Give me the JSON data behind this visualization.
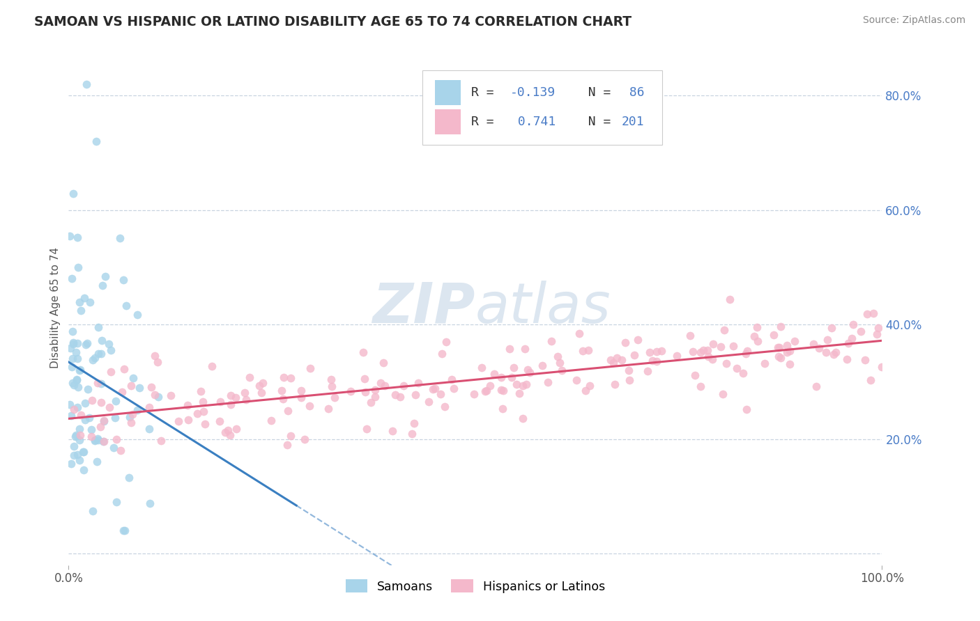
{
  "title": "SAMOAN VS HISPANIC OR LATINO DISABILITY AGE 65 TO 74 CORRELATION CHART",
  "source": "Source: ZipAtlas.com",
  "ylabel": "Disability Age 65 to 74",
  "xlim": [
    0.0,
    1.0
  ],
  "ylim": [
    -0.02,
    0.88
  ],
  "yticks": [
    0.0,
    0.2,
    0.4,
    0.6,
    0.8
  ],
  "ytick_labels": [
    "",
    "20.0%",
    "40.0%",
    "60.0%",
    "80.0%"
  ],
  "samoan_R": -0.139,
  "samoan_N": 86,
  "hispanic_R": 0.741,
  "hispanic_N": 201,
  "samoan_dot_color": "#a8d4ea",
  "hispanic_dot_color": "#f4b8cb",
  "samoan_line_color": "#3a7fc1",
  "hispanic_line_color": "#d94f72",
  "grid_color": "#c8d4e0",
  "background_color": "#ffffff",
  "watermark_zip": "ZIP",
  "watermark_atlas": "atlas",
  "watermark_color": "#dce6f0",
  "tick_color": "#4a7cc7",
  "seed": 99
}
